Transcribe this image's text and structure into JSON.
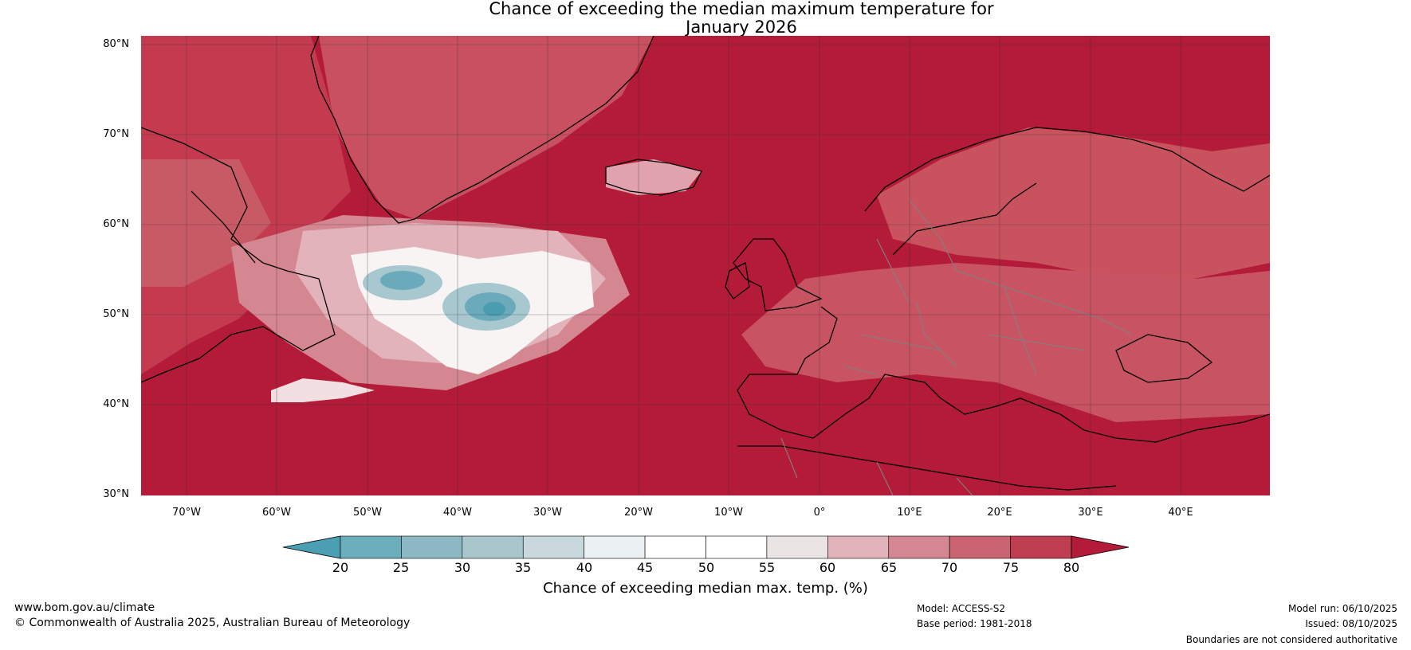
{
  "title": {
    "line1": "Chance of exceeding the median maximum temperature for",
    "line2": "January 2026"
  },
  "map": {
    "lat_labels": [
      "80°N",
      "70°N",
      "60°N",
      "50°N",
      "40°N",
      "30°N"
    ],
    "lon_labels": [
      "70°W",
      "60°W",
      "50°W",
      "40°W",
      "30°W",
      "20°W",
      "10°W",
      "0°",
      "10°E",
      "20°E",
      "30°E",
      "40°E"
    ],
    "colors": {
      "ocean_high": "#b31b38",
      "land_high": "#c43a4f",
      "mid": "#d0707f",
      "light": "#e0a2ac",
      "white": "#f8f4f4",
      "blue_light": "#a8c8d0",
      "blue_mid": "#6aaabb",
      "blue_dark": "#4a9cb0",
      "coast": "#000000",
      "border": "#808080",
      "grid": "#333333"
    }
  },
  "colorbar": {
    "ticks": [
      "20",
      "25",
      "30",
      "35",
      "40",
      "45",
      "50",
      "55",
      "60",
      "65",
      "70",
      "75",
      "80"
    ],
    "colors": [
      "#4da1b4",
      "#6cadbb",
      "#8bb8c3",
      "#a9c6cd",
      "#c9d8dc",
      "#ebf1f2",
      "#ffffff",
      "#ffffff",
      "#ebe4e5",
      "#e2b3ba",
      "#d58791",
      "#c96470",
      "#bf3e51"
    ],
    "under_color": "#4a9fb2",
    "over_color": "#b31b38",
    "label": "Chance of exceeding median max. temp. (%)"
  },
  "footer": {
    "website": "www.bom.gov.au/climate",
    "copyright": "© Commonwealth of Australia 2025, Australian Bureau of Meteorology",
    "model": "Model: ACCESS-S2",
    "base_period": "Base period: 1981-2018",
    "model_run": "Model run: 06/10/2025",
    "issued": "Issued: 08/10/2025",
    "boundaries": "Boundaries are not considered authoritative"
  }
}
